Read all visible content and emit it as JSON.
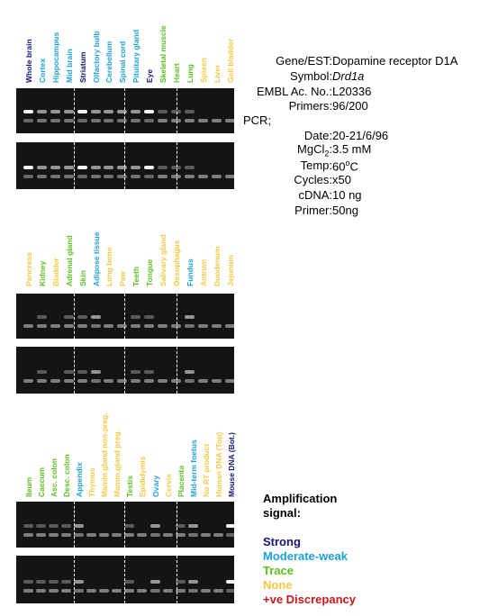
{
  "colors": {
    "strong": "#14147a",
    "moderate_weak": "#1ea0d8",
    "trace": "#5cc020",
    "none": "#f5c842",
    "discrepancy": "#c81818"
  },
  "panels": [
    {
      "lanes": [
        {
          "label": "Whole brain",
          "signal": "strong"
        },
        {
          "label": "Cortex",
          "signal": "moderate_weak"
        },
        {
          "label": "Hippocampus",
          "signal": "moderate_weak"
        },
        {
          "label": "Mid brain",
          "signal": "moderate_weak"
        },
        {
          "label": "Striatum",
          "signal": "strong"
        },
        {
          "label": "Olfactory bulb",
          "signal": "moderate_weak"
        },
        {
          "label": "Cerebellum",
          "signal": "moderate_weak"
        },
        {
          "label": "Spinal cord",
          "signal": "moderate_weak"
        },
        {
          "label": "Pituitary gland",
          "signal": "moderate_weak"
        },
        {
          "label": "Eye",
          "signal": "strong"
        },
        {
          "label": "Skeletal muscle",
          "signal": "trace"
        },
        {
          "label": "Heart",
          "signal": "trace"
        },
        {
          "label": "Lung",
          "signal": "trace"
        },
        {
          "label": "Spleen",
          "signal": "none"
        },
        {
          "label": "Liver",
          "signal": "none"
        },
        {
          "label": "Gall bladder",
          "signal": "none"
        }
      ]
    },
    {
      "lanes": [
        {
          "label": "Pancreas",
          "signal": "none"
        },
        {
          "label": "Kidney",
          "signal": "trace"
        },
        {
          "label": "Bladder",
          "signal": "none"
        },
        {
          "label": "Adrenal gland",
          "signal": "trace"
        },
        {
          "label": "Skin",
          "signal": "trace"
        },
        {
          "label": "Adipose tissue",
          "signal": "moderate_weak"
        },
        {
          "label": "Long bone",
          "signal": "none"
        },
        {
          "label": "Paw",
          "signal": "none"
        },
        {
          "label": "Teeth",
          "signal": "trace"
        },
        {
          "label": "Tongue",
          "signal": "trace"
        },
        {
          "label": "Salivary gland",
          "signal": "none"
        },
        {
          "label": "Oesophagus",
          "signal": "none"
        },
        {
          "label": "Fundus",
          "signal": "moderate_weak"
        },
        {
          "label": "Antrum",
          "signal": "none"
        },
        {
          "label": "Duodenum",
          "signal": "none"
        },
        {
          "label": "Jejunum",
          "signal": "none"
        }
      ]
    },
    {
      "lanes": [
        {
          "label": "Ileum",
          "signal": "trace"
        },
        {
          "label": "Caecum",
          "signal": "trace"
        },
        {
          "label": "Asc. colon",
          "signal": "trace"
        },
        {
          "label": "Desc. colon",
          "signal": "trace"
        },
        {
          "label": "Appendix",
          "signal": "moderate_weak"
        },
        {
          "label": "Thymus",
          "signal": "none"
        },
        {
          "label": "Mamm.gland non-preg.",
          "signal": "none"
        },
        {
          "label": "Mamm.gland preg.",
          "signal": "none"
        },
        {
          "label": "Testis",
          "signal": "trace"
        },
        {
          "label": "Epididymis",
          "signal": "none"
        },
        {
          "label": "Ovary",
          "signal": "moderate_weak"
        },
        {
          "label": "Cervix",
          "signal": "none"
        },
        {
          "label": "Placenta",
          "signal": "trace"
        },
        {
          "label": "Mid-term foetus",
          "signal": "moderate_weak"
        },
        {
          "label": "No RT product",
          "signal": "none"
        },
        {
          "label": "Human DNA (Top)",
          "signal": "none"
        },
        {
          "label": "Mouse DNA (Bot.)",
          "signal": "strong"
        }
      ]
    }
  ],
  "info": {
    "gene_est": {
      "key": "Gene/EST:",
      "value": "Dopamine receptor D1A"
    },
    "symbol": {
      "key": "Symbol:",
      "value": "Drd1a"
    },
    "embl": {
      "key": "EMBL Ac. No.:",
      "value": "L20336"
    },
    "primers": {
      "key": "Primers:",
      "value": "96/200"
    },
    "pcr": {
      "key": "PCR;"
    },
    "date": {
      "key": "Date:",
      "value": "20-21/6/96"
    },
    "mgcl2": {
      "key_main": "MgCl",
      "key_sub": "2",
      "key_colon": ":",
      "value": "3.5 mM"
    },
    "temp": {
      "key": "Temp:",
      "value_main": "60",
      "value_sup": "o",
      "value_unit": "C"
    },
    "cycles": {
      "key": "Cycles:",
      "value": "x50"
    },
    "cdna": {
      "key": "cDNA:",
      "value": "10 ng"
    },
    "primer": {
      "key": "Primer:",
      "value": "50ng"
    }
  },
  "legend": {
    "title_line1": "Amplification",
    "title_line2": "signal:",
    "strong": "Strong",
    "moderate_weak": "Moderate-weak",
    "trace": "Trace",
    "none": "None",
    "discrepancy": "+ve Discrepancy"
  }
}
